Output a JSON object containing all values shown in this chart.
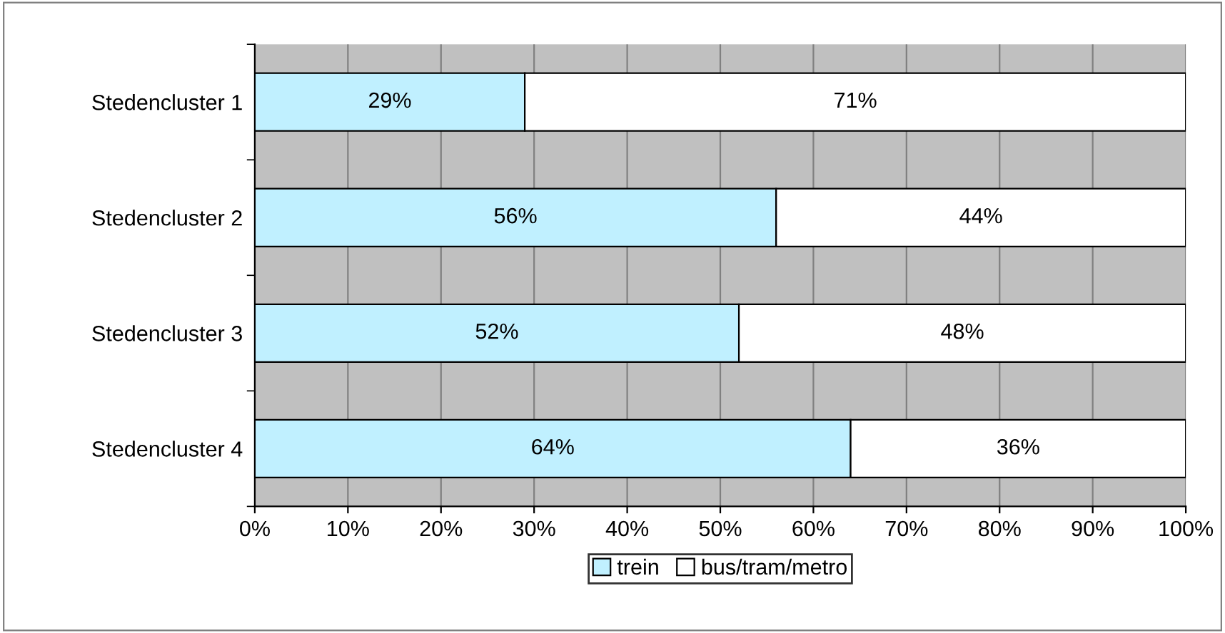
{
  "chart_data": {
    "type": "bar",
    "orientation": "horizontal",
    "stacked": true,
    "categories": [
      "Stedencluster 1",
      "Stedencluster 2",
      "Stedencluster 3",
      "Stedencluster 4"
    ],
    "series": [
      {
        "name": "trein",
        "color": "#c0f0ff",
        "values": [
          29,
          56,
          52,
          64
        ],
        "value_labels": [
          "29%",
          "56%",
          "52%",
          "64%"
        ]
      },
      {
        "name": "bus/tram/metro",
        "color": "#ffffff",
        "values": [
          71,
          44,
          48,
          36
        ],
        "value_labels": [
          "71%",
          "44%",
          "48%",
          "36%"
        ]
      }
    ],
    "xlim": [
      0,
      100
    ],
    "xticks": [
      {
        "value": 0,
        "label": "0%"
      },
      {
        "value": 10,
        "label": "10%"
      },
      {
        "value": 20,
        "label": "20%"
      },
      {
        "value": 30,
        "label": "30%"
      },
      {
        "value": 40,
        "label": "40%"
      },
      {
        "value": 50,
        "label": "50%"
      },
      {
        "value": 60,
        "label": "60%"
      },
      {
        "value": 70,
        "label": "70%"
      },
      {
        "value": 80,
        "label": "80%"
      },
      {
        "value": 90,
        "label": "90%"
      },
      {
        "value": 100,
        "label": "100%"
      }
    ],
    "grid": "x",
    "legend": "bottom"
  }
}
